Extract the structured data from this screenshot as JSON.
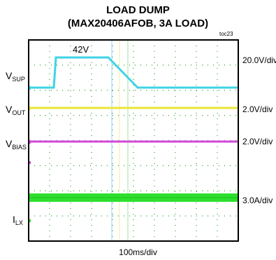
{
  "title_line1": "LOAD DUMP",
  "title_line2": "(MAX20406AFOB, 3A LOAD)",
  "fig_id": "toc23",
  "time_div": "100ms/div",
  "annotation": "42V",
  "colors": {
    "vsup": "#3fd3e6",
    "vout": "#e8e637",
    "vbias": "#d447d9",
    "ilx": "#2ee02e",
    "grid": "#2a9d2a",
    "frame": "#000000"
  },
  "chart_data": {
    "type": "line",
    "title": "LOAD DUMP (MAX20406AFOB, 3A LOAD)",
    "xlabel": "100ms/div",
    "grid": true,
    "x_divisions": 10,
    "y_divisions": 8,
    "x_unit_per_div_ms": 100,
    "series": [
      {
        "name": "VSUP",
        "label_main": "V",
        "label_sub": "SUP",
        "scale": "20.0V/div",
        "t_ms": [
          0,
          120,
          130,
          380,
          520,
          600,
          1000
        ],
        "v": [
          14,
          14,
          42,
          42,
          14,
          14,
          14
        ]
      },
      {
        "name": "VOUT",
        "label_main": "V",
        "label_sub": "OUT",
        "scale": "2.0V/div",
        "t_ms": [
          0,
          1000
        ],
        "v": [
          5,
          5
        ]
      },
      {
        "name": "VBIAS",
        "label_main": "V",
        "label_sub": "BIAS",
        "scale": "2.0V/div",
        "t_ms": [
          0,
          1000
        ],
        "v": [
          5,
          5
        ]
      },
      {
        "name": "ILX",
        "label_main": "I",
        "label_sub": "LX",
        "scale": "3.0A/div",
        "t_ms": [
          0,
          1000
        ],
        "i": [
          3,
          3
        ]
      }
    ]
  }
}
